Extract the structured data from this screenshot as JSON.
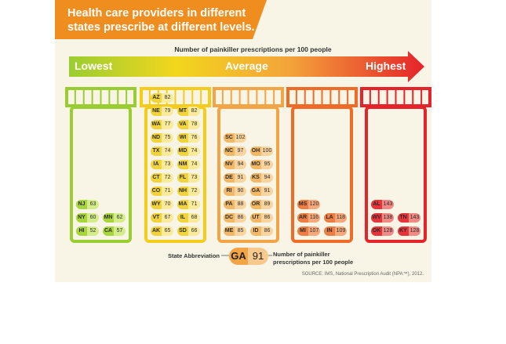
{
  "banner": {
    "title": "Health care providers in different states prescribe at different levels.",
    "color": "#f08d1f"
  },
  "subtitle": "Number of painkiller prescriptions per 100 people",
  "scale": {
    "low": "Lowest",
    "mid": "Average",
    "high": "Highest"
  },
  "legend": {
    "abbr_label": "State Abbreviation",
    "value_label": "Number of painkiller prescriptions per 100 people",
    "example_abbr": "GA",
    "example_value": "91"
  },
  "source": "SOURCE: IMS, National Prescription Audit (NPA™), 2012.",
  "chart_data": {
    "type": "table",
    "groups": [
      {
        "color": "#9acd32",
        "light": "#d4ed8a",
        "dark": "#a8d63a",
        "states": [
          [
            "NJ",
            "63"
          ],
          [
            "NY",
            "60"
          ],
          [
            "MN",
            "62"
          ],
          [
            "HI",
            "52"
          ],
          [
            "CA",
            "57"
          ]
        ]
      },
      {
        "color": "#f6cc1b",
        "light": "#faeb9a",
        "dark": "#f1d43c",
        "states": [
          [
            "AZ",
            "82"
          ],
          [
            "NE",
            "79"
          ],
          [
            "MT",
            "82"
          ],
          [
            "WA",
            "77"
          ],
          [
            "VA",
            "78"
          ],
          [
            "ND",
            "75"
          ],
          [
            "WI",
            "76"
          ],
          [
            "TX",
            "74"
          ],
          [
            "MD",
            "74"
          ],
          [
            "IA",
            "73"
          ],
          [
            "NM",
            "74"
          ],
          [
            "CT",
            "72"
          ],
          [
            "FL",
            "73"
          ],
          [
            "CO",
            "71"
          ],
          [
            "NH",
            "72"
          ],
          [
            "WY",
            "70"
          ],
          [
            "MA",
            "71"
          ],
          [
            "VT",
            "67"
          ],
          [
            "IL",
            "68"
          ],
          [
            "AK",
            "65"
          ],
          [
            "SD",
            "66"
          ]
        ]
      },
      {
        "color": "#f3a545",
        "light": "#f9d49f",
        "dark": "#f3b865",
        "states": [
          [
            "SC",
            "102"
          ],
          [
            "NC",
            "97"
          ],
          [
            "OH",
            "100"
          ],
          [
            "NV",
            "94"
          ],
          [
            "MO",
            "95"
          ],
          [
            "DE",
            "91"
          ],
          [
            "KS",
            "94"
          ],
          [
            "RI",
            "90"
          ],
          [
            "GA",
            "91"
          ],
          [
            "PA",
            "88"
          ],
          [
            "OR",
            "89"
          ],
          [
            "DC",
            "86"
          ],
          [
            "UT",
            "86"
          ],
          [
            "ME",
            "85"
          ],
          [
            "ID",
            "86"
          ]
        ]
      },
      {
        "color": "#ef6b26",
        "light": "#f6a87a",
        "dark": "#ee7d42",
        "states": [
          [
            "MS",
            "120"
          ],
          [
            "AR",
            "116"
          ],
          [
            "LA",
            "118"
          ],
          [
            "MI",
            "107"
          ],
          [
            "IN",
            "109"
          ]
        ]
      },
      {
        "color": "#e5232a",
        "light": "#f08a85",
        "dark": "#e6343a",
        "states": [
          [
            "AL",
            "143"
          ],
          [
            "WV",
            "138"
          ],
          [
            "TN",
            "143"
          ],
          [
            "OK",
            "128"
          ],
          [
            "KY",
            "128"
          ]
        ]
      }
    ]
  }
}
